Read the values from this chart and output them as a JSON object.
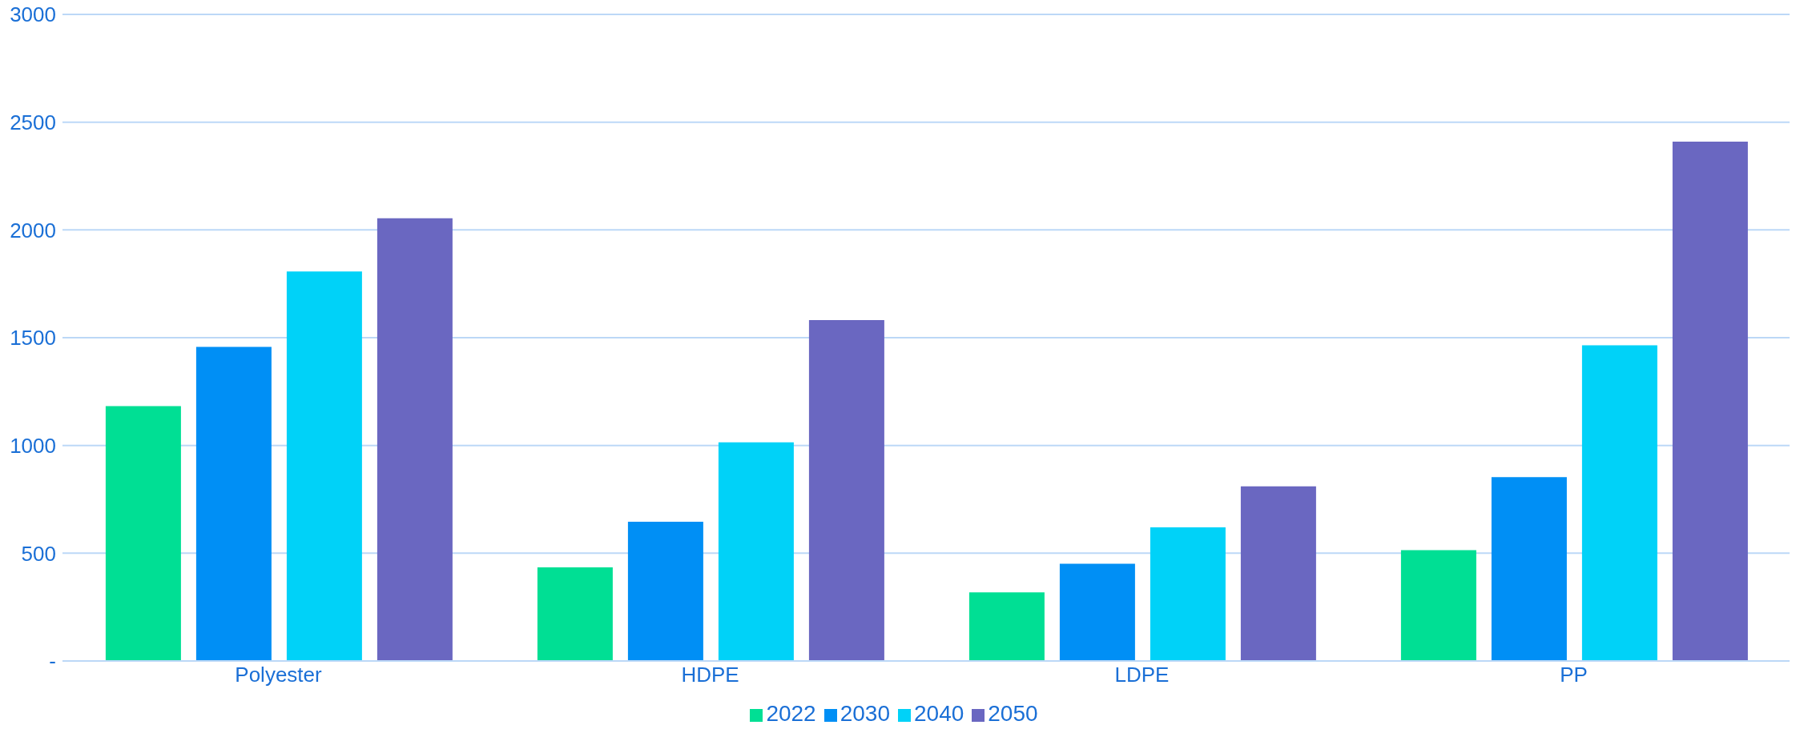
{
  "chart_data": {
    "type": "bar",
    "categories": [
      "Polyester",
      "HDPE",
      "LDPE",
      "PP"
    ],
    "series": [
      {
        "name": "2022",
        "color": "#00df94",
        "values": [
          1183,
          434,
          318,
          514
        ]
      },
      {
        "name": "2030",
        "color": "#008ff5",
        "values": [
          1457,
          646,
          451,
          853
        ]
      },
      {
        "name": "2040",
        "color": "#00d2f8",
        "values": [
          1807,
          1015,
          620,
          1465
        ]
      },
      {
        "name": "2050",
        "color": "#6a67c1",
        "values": [
          2054,
          1582,
          810,
          2410
        ]
      }
    ],
    "ylim": [
      0,
      3000
    ],
    "yticks": [
      {
        "value": 0,
        "label": "-"
      },
      500,
      1000,
      1500,
      2000,
      2500,
      3000
    ],
    "grid": "y",
    "legend": "bottom"
  }
}
